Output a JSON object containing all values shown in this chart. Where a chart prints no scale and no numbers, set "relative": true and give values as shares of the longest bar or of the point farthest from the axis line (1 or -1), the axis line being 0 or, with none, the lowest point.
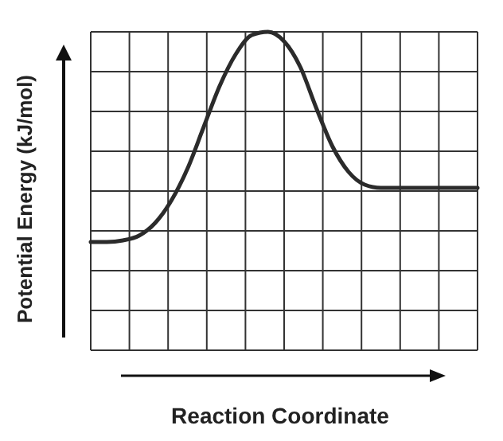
{
  "chart_data": {
    "type": "line",
    "xlabel": "Reaction Coordinate",
    "ylabel": "Potential Energy (kJ/mol)",
    "relative": true,
    "grid": true,
    "line_style": "solid",
    "categories": [
      null,
      null,
      null,
      null,
      null,
      null,
      null,
      null,
      null,
      null,
      null,
      null,
      null,
      null,
      null,
      null,
      null,
      null,
      null,
      null,
      null,
      null,
      null,
      null,
      null
    ],
    "series": [
      {
        "color": "#2b2b2b",
        "values": [
          0.34,
          0.34,
          0.345,
          0.36,
          0.4,
          0.47,
          0.57,
          0.7,
          0.83,
          0.93,
          0.99,
          1,
          0.97,
          0.89,
          0.76,
          0.64,
          0.56,
          0.52,
          0.51,
          0.51,
          0.51,
          0.51,
          0.51,
          0.51,
          0.51
        ]
      }
    ]
  }
}
